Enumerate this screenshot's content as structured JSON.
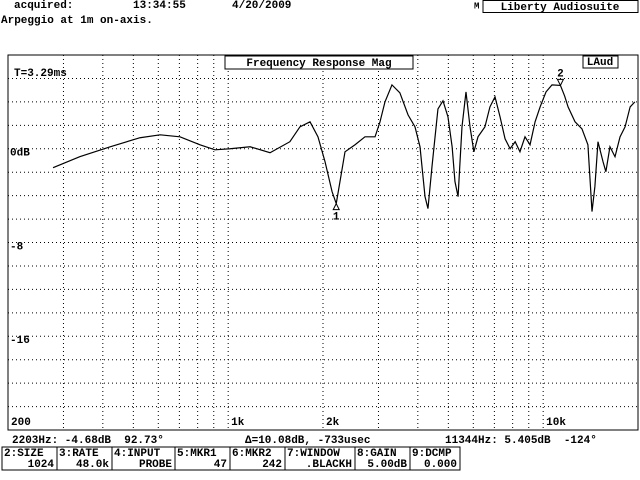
{
  "header": {
    "acquired_label": "acquired:",
    "time": "13:34:55",
    "date": "4/20/2009",
    "mode": "M",
    "app": "Liberty Audiosuite",
    "description": "Arpeggio at 1m on-axis."
  },
  "chart_data": {
    "type": "line",
    "title": "Frequency Response Mag",
    "badge": "LAud",
    "annotation": "T=3.29ms",
    "log_x": true,
    "grid": true,
    "color": "#000000",
    "xlim": [
      200,
      20000
    ],
    "xticks": [
      {
        "value": 200,
        "label": "200"
      },
      {
        "value": 1000,
        "label": "1k"
      },
      {
        "value": 2000,
        "label": "2k"
      },
      {
        "value": 10000,
        "label": "10k"
      }
    ],
    "xgrid": [
      300,
      400,
      500,
      600,
      700,
      800,
      900,
      3000,
      4000,
      5000,
      6000,
      7000,
      8000,
      9000,
      20000
    ],
    "ylim": [
      -24,
      8
    ],
    "yticks": [
      {
        "value": 0,
        "label": "0dB"
      },
      -8,
      -16
    ],
    "ygrid": [
      8,
      6,
      4,
      2,
      -2,
      -4,
      -6,
      -10,
      -12,
      -14,
      -18,
      -20,
      -22
    ],
    "x": [
      278,
      338,
      422,
      525,
      608,
      703,
      814,
      908,
      1014,
      1174,
      1358,
      1570,
      1690,
      1819,
      1928,
      2030,
      2137,
      2203,
      2264,
      2349,
      2528,
      2718,
      2926,
      3034,
      3146,
      3311,
      3508,
      3724,
      3918,
      4064,
      4216,
      4308,
      4436,
      4634,
      4808,
      4986,
      5140,
      5248,
      5368,
      5524,
      5688,
      5858,
      6026,
      6210,
      6532,
      6776,
      7032,
      7296,
      7568,
      7852,
      8148,
      8440,
      8756,
      9084,
      9426,
      9778,
      10210,
      10666,
      11344,
      11700,
      11996,
      12620,
      13276,
      13868,
      14290,
      14594,
      14928,
      15490,
      15814,
      16294,
      16906,
      17540,
      18198,
      18882,
      19544
    ],
    "values": [
      -1.62,
      -0.68,
      0.17,
      0.94,
      1.19,
      1.02,
      0.34,
      -0.09,
      0,
      0.17,
      -0.34,
      0.6,
      1.87,
      2.3,
      1.02,
      -1.11,
      -3.66,
      -4.68,
      -2.81,
      -0.26,
      0.34,
      1.02,
      1.02,
      2.3,
      4.0,
      5.45,
      4.77,
      2.89,
      1.87,
      0.17,
      -4.09,
      -5.11,
      -1.53,
      3.4,
      4.09,
      2.72,
      0.17,
      -2.81,
      -4.09,
      1.87,
      4.85,
      1.87,
      -0.26,
      1.02,
      1.87,
      3.57,
      4.43,
      2.72,
      0.85,
      0,
      0.6,
      -0.26,
      1.02,
      0.34,
      2.3,
      3.57,
      4.85,
      5.45,
      5.405,
      4.5,
      3.57,
      2.3,
      1.7,
      0.34,
      -5.36,
      -3.23,
      0.6,
      -1.11,
      -1.96,
      0.17,
      -0.68,
      1.02,
      1.87,
      3.57,
      4.0
    ],
    "markers": [
      {
        "label": "1",
        "x": 2203,
        "y": -4.68
      },
      {
        "label": "2",
        "x": 11344,
        "y": 5.405
      }
    ]
  },
  "status": {
    "marker1": "2203Hz: -4.68dB  92.73°",
    "delta": "Δ=10.08dB, -733usec",
    "marker2": "11344Hz: 5.405dB  -124°"
  },
  "function_keys": [
    {
      "key": "2:SIZE",
      "value": "1024"
    },
    {
      "key": "3:RATE",
      "value": "48.0k"
    },
    {
      "key": "4:INPUT",
      "value": "PROBE"
    },
    {
      "key": "5:MKR1",
      "value": "47"
    },
    {
      "key": "6:MKR2",
      "value": "242"
    },
    {
      "key": "7:WINDOW",
      "value": ".BLACKH"
    },
    {
      "key": "8:GAIN",
      "value": "5.00dB"
    },
    {
      "key": "9:DCMP",
      "value": "0.000"
    }
  ]
}
